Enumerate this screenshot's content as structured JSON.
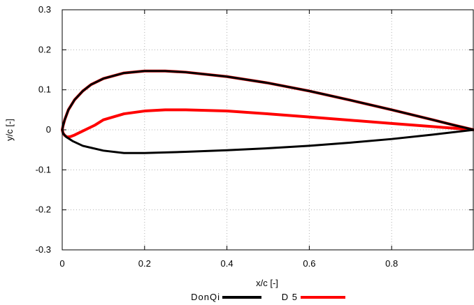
{
  "chart_data": {
    "type": "line",
    "title": "",
    "xlabel": "x/c [-]",
    "ylabel": "y/c [-]",
    "xlim": [
      0,
      1
    ],
    "ylim": [
      -0.3,
      0.3
    ],
    "grid": true,
    "legend_position": "bottom-center",
    "x_ticks": [
      0,
      0.2,
      0.4,
      0.6,
      0.8
    ],
    "x_tick_labels": [
      "0",
      "0.2",
      "0.4",
      "0.6",
      "0.8"
    ],
    "y_ticks": [
      -0.3,
      -0.2,
      -0.1,
      0,
      0.1,
      0.2,
      0.3
    ],
    "y_tick_labels": [
      "-0.3",
      "-0.2",
      "-0.1",
      "0",
      "0.1",
      "0.2",
      "0.3"
    ],
    "series": [
      {
        "name": "DonQi",
        "color": "#000000",
        "points": [
          [
            1.0,
            0.0
          ],
          [
            0.95,
            0.012
          ],
          [
            0.9,
            0.025
          ],
          [
            0.8,
            0.05
          ],
          [
            0.7,
            0.074
          ],
          [
            0.6,
            0.097
          ],
          [
            0.5,
            0.117
          ],
          [
            0.4,
            0.133
          ],
          [
            0.3,
            0.144
          ],
          [
            0.25,
            0.147
          ],
          [
            0.2,
            0.147
          ],
          [
            0.15,
            0.142
          ],
          [
            0.1,
            0.128
          ],
          [
            0.07,
            0.113
          ],
          [
            0.05,
            0.097
          ],
          [
            0.03,
            0.075
          ],
          [
            0.015,
            0.05
          ],
          [
            0.006,
            0.025
          ],
          [
            0.002,
            0.01
          ],
          [
            0.0,
            0.0
          ],
          [
            0.002,
            -0.009
          ],
          [
            0.01,
            -0.018
          ],
          [
            0.025,
            -0.028
          ],
          [
            0.05,
            -0.04
          ],
          [
            0.1,
            -0.052
          ],
          [
            0.15,
            -0.058
          ],
          [
            0.2,
            -0.058
          ],
          [
            0.3,
            -0.055
          ],
          [
            0.4,
            -0.051
          ],
          [
            0.5,
            -0.046
          ],
          [
            0.6,
            -0.04
          ],
          [
            0.7,
            -0.032
          ],
          [
            0.8,
            -0.023
          ],
          [
            0.9,
            -0.012
          ],
          [
            1.0,
            0.0
          ]
        ]
      },
      {
        "name": "D 5",
        "color": "#ff0000",
        "points": [
          [
            1.0,
            0.0
          ],
          [
            0.95,
            0.012
          ],
          [
            0.9,
            0.025
          ],
          [
            0.8,
            0.05
          ],
          [
            0.7,
            0.074
          ],
          [
            0.6,
            0.097
          ],
          [
            0.5,
            0.117
          ],
          [
            0.4,
            0.133
          ],
          [
            0.3,
            0.144
          ],
          [
            0.25,
            0.147
          ],
          [
            0.2,
            0.147
          ],
          [
            0.15,
            0.142
          ],
          [
            0.1,
            0.128
          ],
          [
            0.07,
            0.113
          ],
          [
            0.05,
            0.097
          ],
          [
            0.03,
            0.075
          ],
          [
            0.015,
            0.05
          ],
          [
            0.006,
            0.025
          ],
          [
            0.002,
            0.01
          ],
          [
            0.0,
            0.0
          ],
          [
            0.002,
            -0.008
          ],
          [
            0.006,
            -0.014
          ],
          [
            0.012,
            -0.018
          ],
          [
            0.02,
            -0.017
          ],
          [
            0.03,
            -0.013
          ],
          [
            0.05,
            -0.003
          ],
          [
            0.08,
            0.012
          ],
          [
            0.1,
            0.025
          ],
          [
            0.15,
            0.04
          ],
          [
            0.2,
            0.047
          ],
          [
            0.25,
            0.05
          ],
          [
            0.3,
            0.05
          ],
          [
            0.4,
            0.047
          ],
          [
            0.5,
            0.04
          ],
          [
            0.6,
            0.032
          ],
          [
            0.7,
            0.024
          ],
          [
            0.8,
            0.016
          ],
          [
            0.9,
            0.008
          ],
          [
            1.0,
            0.0
          ]
        ]
      }
    ]
  }
}
